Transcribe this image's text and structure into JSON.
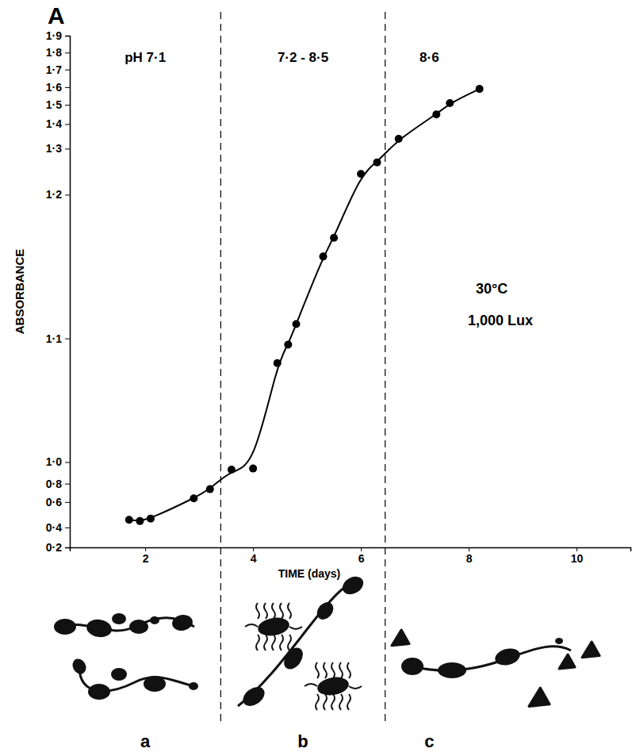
{
  "chart_data": {
    "type": "line",
    "panel": "A",
    "x_label": "TIME (days)",
    "y_label": "ABSORBANCE",
    "x": [
      1.7,
      1.9,
      2.1,
      2.9,
      3.2,
      3.6,
      4.0,
      4.45,
      4.65,
      4.8,
      5.3,
      5.5,
      6.0,
      6.3,
      6.7,
      7.4,
      7.65,
      8.2
    ],
    "values": [
      0.46,
      0.45,
      0.47,
      0.64,
      0.74,
      0.93,
      0.94,
      1.08,
      1.095,
      1.11,
      1.157,
      1.17,
      1.245,
      1.27,
      1.34,
      1.45,
      1.51,
      1.59
    ],
    "marker": "circle",
    "color": "#000000",
    "xlim": [
      0.6,
      11
    ],
    "xticks": [
      2,
      4,
      6,
      8,
      10
    ],
    "ylim": [
      0.2,
      1.9
    ],
    "yticks": [
      {
        "value": 0.2,
        "label": "0·2"
      },
      {
        "value": 0.4,
        "label": "0·4"
      },
      {
        "value": 0.6,
        "label": "0·6"
      },
      {
        "value": 0.8,
        "label": "0·8"
      },
      {
        "value": 1.0,
        "label": "1·0"
      },
      {
        "value": 1.1,
        "label": "1·1"
      },
      {
        "value": 1.2,
        "label": "1·2"
      },
      {
        "value": 1.3,
        "label": "1·3"
      },
      {
        "value": 1.4,
        "label": "1·4"
      },
      {
        "value": 1.5,
        "label": "1·5"
      },
      {
        "value": 1.6,
        "label": "1·6"
      },
      {
        "value": 1.7,
        "label": "1·7"
      },
      {
        "value": 1.8,
        "label": "1·8"
      },
      {
        "value": 1.9,
        "label": "1·9"
      }
    ],
    "dividers": [
      3.4,
      6.45
    ],
    "phases": [
      {
        "ph": "pH 7·1",
        "label": "a"
      },
      {
        "ph": "7·2 - 8·5",
        "label": "b"
      },
      {
        "ph": "8·6",
        "label": "c"
      }
    ],
    "annotations": [
      "30°C",
      "1,000 Lux"
    ]
  }
}
